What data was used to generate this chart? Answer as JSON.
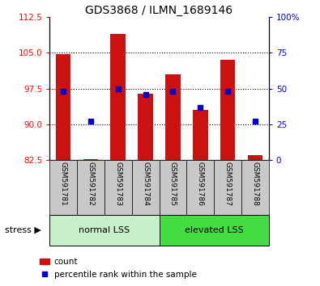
{
  "title": "GDS3868 / ILMN_1689146",
  "categories": [
    "GSM591781",
    "GSM591782",
    "GSM591783",
    "GSM591784",
    "GSM591785",
    "GSM591786",
    "GSM591787",
    "GSM591788"
  ],
  "bar_values": [
    104.8,
    82.7,
    109.0,
    96.5,
    100.5,
    93.0,
    103.5,
    83.5
  ],
  "bar_bottom": 82.5,
  "percentile_values": [
    48,
    27,
    50,
    46,
    48,
    37,
    48,
    27
  ],
  "ylim_left": [
    82.5,
    112.5
  ],
  "ylim_right": [
    0,
    100
  ],
  "yticks_left": [
    82.5,
    90,
    97.5,
    105,
    112.5
  ],
  "yticks_right": [
    0,
    25,
    50,
    75,
    100
  ],
  "ytick_labels_right": [
    "0",
    "25",
    "50",
    "75",
    "100%"
  ],
  "bar_color": "#cc1111",
  "marker_color": "#0000cc",
  "group1_label": "normal LSS",
  "group2_label": "elevated LSS",
  "group1_bg": "#c8f0c8",
  "group2_bg": "#44dd44",
  "stress_label": "stress ▶",
  "xlabel_bg": "#c8c8c8",
  "legend_count_label": "count",
  "legend_pct_label": "percentile rank within the sample",
  "title_fontsize": 10,
  "tick_fontsize": 7.5,
  "label_fontsize": 8
}
